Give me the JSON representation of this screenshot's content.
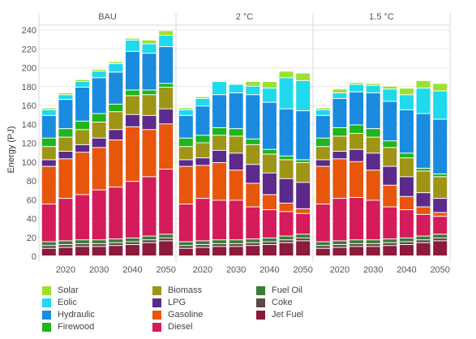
{
  "chart_data": {
    "type": "bar",
    "stacked": true,
    "ylabel": "Energy (PJ)",
    "ylim": [
      0,
      245
    ],
    "yticks": [
      0,
      20,
      40,
      60,
      80,
      100,
      120,
      140,
      160,
      180,
      200,
      220,
      240
    ],
    "years": [
      2015,
      2020,
      2025,
      2030,
      2035,
      2040,
      2045,
      2050
    ],
    "xtick_labels": [
      "2020",
      "2030",
      "2040",
      "2050"
    ],
    "grid": true,
    "legend_position": "bottom",
    "panels": [
      {
        "name": "BAU",
        "series": [
          {
            "name": "Jet Fuel",
            "values": [
              8,
              9,
              10,
              10,
              11,
              12,
              14,
              16
            ]
          },
          {
            "name": "Coke",
            "values": [
              3,
              3,
              3,
              3,
              3,
              3,
              3,
              3
            ]
          },
          {
            "name": "Fuel Oil",
            "values": [
              4,
              4,
              4,
              4,
              4,
              4,
              4,
              4
            ]
          },
          {
            "name": "Diesel",
            "values": [
              40,
              45,
              48,
              53,
              55,
              60,
              63,
              69
            ]
          },
          {
            "name": "Gasoline",
            "values": [
              40,
              42,
              45,
              45,
              50,
              58,
              50,
              48
            ]
          },
          {
            "name": "LPG",
            "values": [
              7,
              8,
              8,
              10,
              11,
              13,
              15,
              16
            ]
          },
          {
            "name": "Biomass",
            "values": [
              14,
              15,
              16,
              17,
              19,
              20,
              22,
              23
            ]
          },
          {
            "name": "Firewood",
            "values": [
              9,
              9,
              9,
              9,
              8,
              6,
              5,
              4
            ]
          },
          {
            "name": "Hydraulic",
            "values": [
              24,
              31,
              36,
              38,
              34,
              41,
              39,
              39
            ]
          },
          {
            "name": "Eolic",
            "values": [
              6,
              5,
              6,
              7,
              9,
              12,
              10,
              12
            ]
          },
          {
            "name": "Solar",
            "values": [
              2,
              2,
              2,
              2,
              2,
              2,
              4,
              5
            ]
          }
        ]
      },
      {
        "name": "2 °C",
        "series": [
          {
            "name": "Jet Fuel",
            "values": [
              8,
              9,
              10,
              10,
              11,
              12,
              14,
              16
            ]
          },
          {
            "name": "Coke",
            "values": [
              3,
              3,
              3,
              3,
              3,
              3,
              3,
              3
            ]
          },
          {
            "name": "Fuel Oil",
            "values": [
              4,
              4,
              4,
              4,
              4,
              4,
              4,
              4
            ]
          },
          {
            "name": "Diesel",
            "values": [
              40,
              45,
              42,
              42,
              34,
              30,
              26,
              22
            ]
          },
          {
            "name": "Gasoline",
            "values": [
              40,
              35,
              40,
              32,
              25,
              16,
              9,
              5
            ]
          },
          {
            "name": "LPG",
            "values": [
              7,
              8,
              13,
              18,
              20,
              23,
              26,
              28
            ]
          },
          {
            "name": "Biomass",
            "values": [
              14,
              16,
              16,
              18,
              21,
              20,
              20,
              21
            ]
          },
          {
            "name": "Firewood",
            "values": [
              9,
              8,
              8,
              8,
              6,
              5,
              4,
              3
            ]
          },
          {
            "name": "Hydraulic",
            "values": [
              24,
              31,
              35,
              38,
              47,
              50,
              50,
              52
            ]
          },
          {
            "name": "Eolic",
            "values": [
              6,
              8,
              14,
              9,
              9,
              15,
              33,
              32
            ]
          },
          {
            "name": "Solar",
            "values": [
              2,
              2,
              1,
              1,
              5,
              7,
              7,
              8
            ]
          }
        ]
      },
      {
        "name": "1.5 °C",
        "series": [
          {
            "name": "Jet Fuel",
            "values": [
              8,
              9,
              10,
              10,
              11,
              12,
              14,
              16
            ]
          },
          {
            "name": "Coke",
            "values": [
              3,
              3,
              3,
              3,
              3,
              3,
              3,
              3
            ]
          },
          {
            "name": "Fuel Oil",
            "values": [
              4,
              4,
              4,
              4,
              4,
              4,
              4,
              4
            ]
          },
          {
            "name": "Diesel",
            "values": [
              40,
              45,
              45,
              42,
              34,
              30,
              23,
              19
            ]
          },
          {
            "name": "Gasoline",
            "values": [
              40,
              42,
              38,
              32,
              23,
              14,
              8,
              4
            ]
          },
          {
            "name": "LPG",
            "values": [
              7,
              8,
              13,
              18,
              20,
              21,
              15,
              15
            ]
          },
          {
            "name": "Biomass",
            "values": [
              14,
              16,
              17,
              17,
              20,
              20,
              23,
              23
            ]
          },
          {
            "name": "Firewood",
            "values": [
              9,
              9,
              9,
              9,
              7,
              5,
              3,
              3
            ]
          },
          {
            "name": "Hydraulic",
            "values": [
              24,
              31,
              35,
              38,
              42,
              46,
              58,
              58
            ]
          },
          {
            "name": "Eolic",
            "values": [
              6,
              6,
              8,
              8,
              13,
              16,
              27,
              30
            ]
          },
          {
            "name": "Solar",
            "values": [
              2,
              4,
              2,
              2,
              3,
              7,
              8,
              8
            ]
          }
        ]
      }
    ],
    "colors": {
      "Solar": "#9be22d",
      "Eolic": "#1fd9ec",
      "Hydraulic": "#1a8bdf",
      "Firewood": "#1eb51e",
      "Biomass": "#9e9416",
      "LPG": "#5b2a8b",
      "Gasoline": "#e8560c",
      "Diesel": "#d41b5b",
      "Fuel Oil": "#3d7a34",
      "Coke": "#5a4a44",
      "Jet Fuel": "#8b1a3c"
    },
    "legend": [
      [
        "Solar",
        "Eolic",
        "Hydraulic",
        "Firewood"
      ],
      [
        "Biomass",
        "LPG",
        "Gasoline",
        "Diesel"
      ],
      [
        "Fuel Oil",
        "Coke",
        "Jet Fuel"
      ]
    ]
  }
}
